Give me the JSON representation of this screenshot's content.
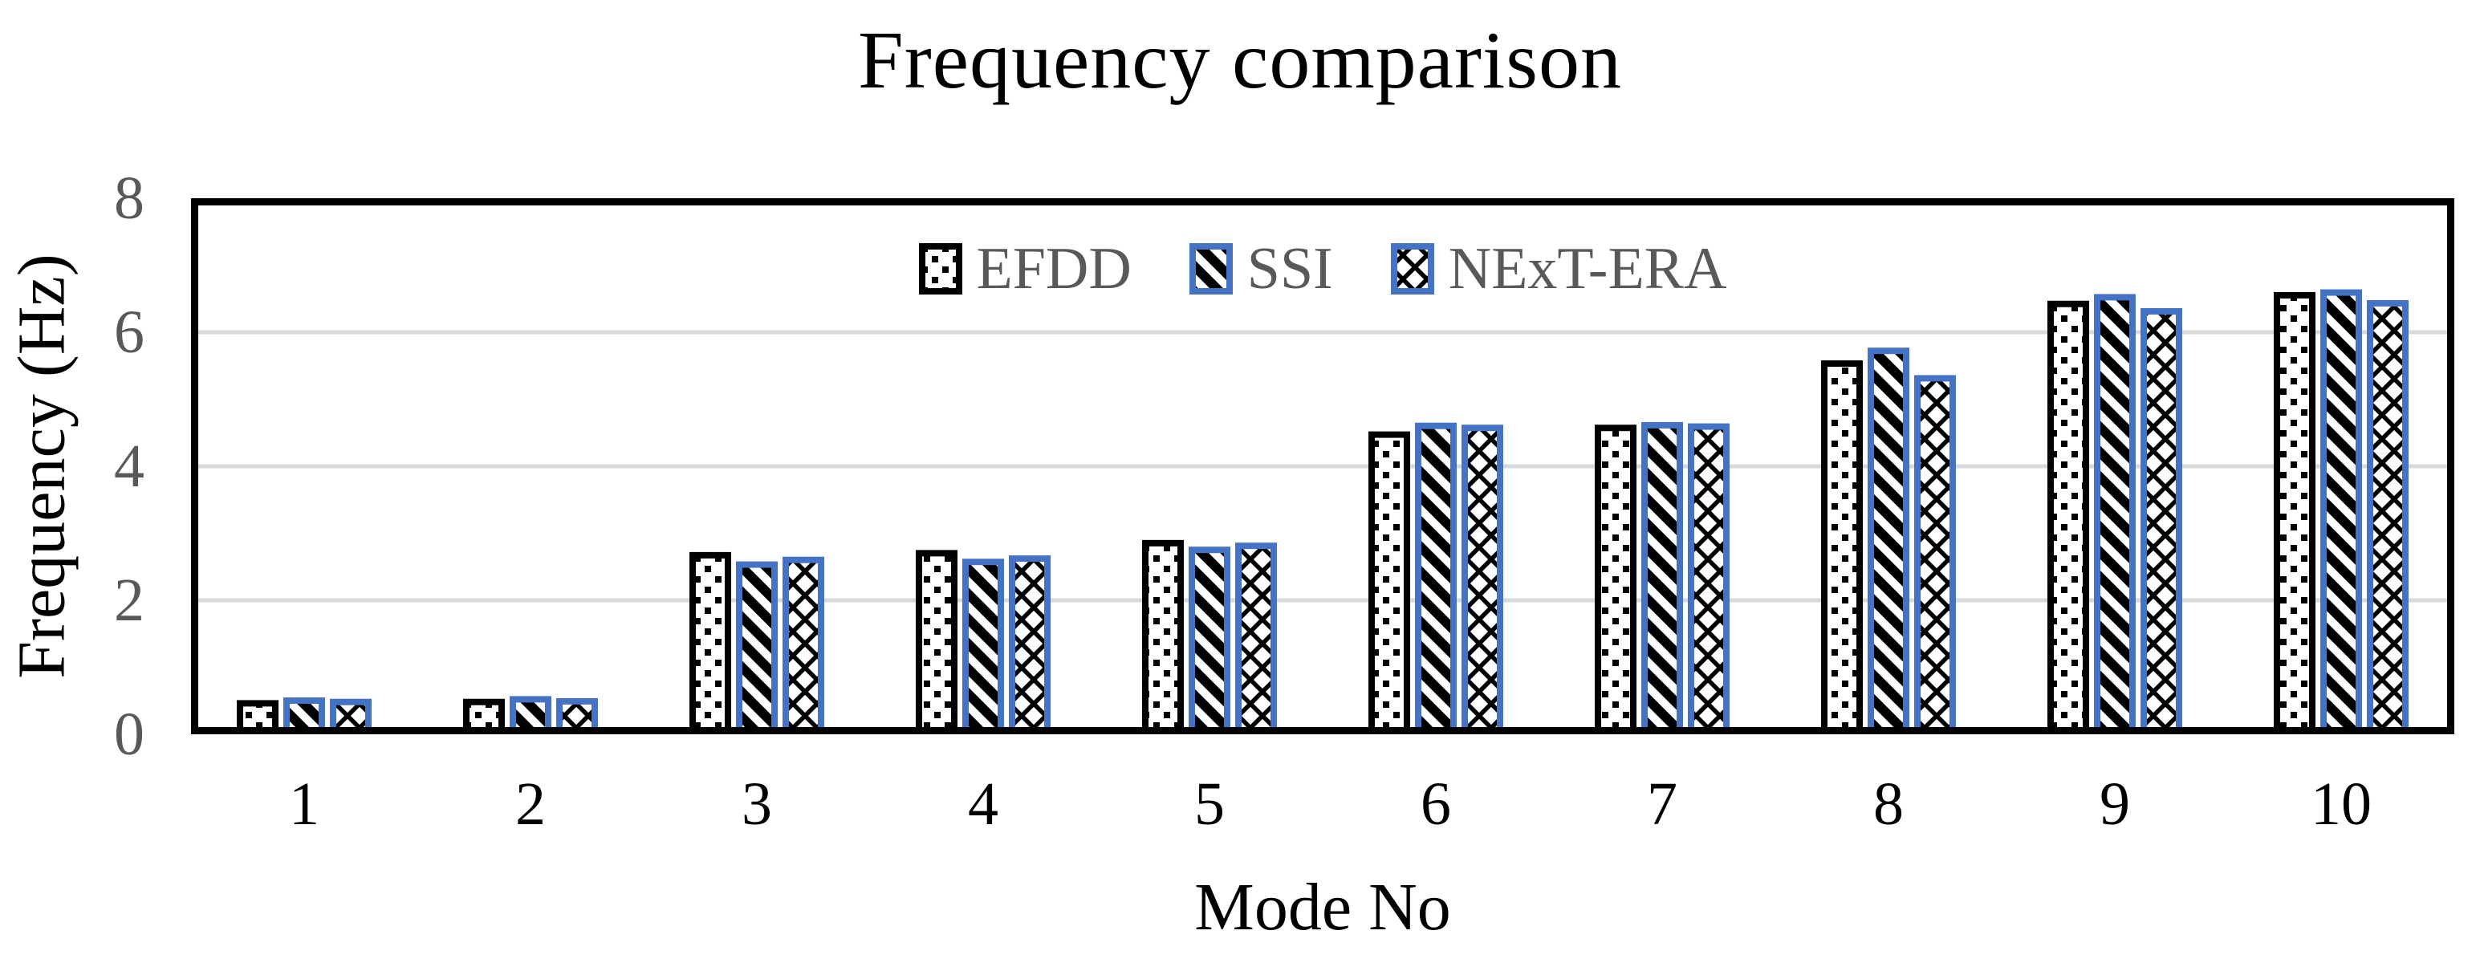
{
  "title": "Frequency comparison",
  "axes": {
    "x_label": "Mode No",
    "y_label": "Frequency (Hz)"
  },
  "colors": {
    "accent_blue": "#4472C4",
    "series_black": "#000000",
    "tick_gray": "#595959",
    "gridline_gray": "#D9D9D9",
    "background": "#FFFFFF"
  },
  "chart_data": {
    "type": "bar",
    "title": "Frequency comparison",
    "xlabel": "Mode No",
    "ylabel": "Frequency (Hz)",
    "ylim": [
      0,
      8
    ],
    "yticks": [
      0,
      2,
      4,
      6,
      8
    ],
    "grid": "horizontal-light-gray",
    "legend_position": "top-center-inside-plot",
    "plot_border": "black-box",
    "categories": [
      "1",
      "2",
      "3",
      "4",
      "5",
      "6",
      "7",
      "8",
      "9",
      "10"
    ],
    "series": [
      {
        "name": "EFDD",
        "pattern": "dots",
        "border_color": "#000000",
        "pattern_color": "#000000",
        "fill_background": "#FFFFFF",
        "values": [
          0.51,
          0.53,
          2.72,
          2.75,
          2.9,
          4.52,
          4.62,
          5.58,
          6.47,
          6.6
        ]
      },
      {
        "name": "SSI",
        "pattern": "diagonal-stripes",
        "border_color": "#4472C4",
        "pattern_color": "#000000",
        "fill_background": "#FFFFFF",
        "values": [
          0.55,
          0.57,
          2.58,
          2.62,
          2.8,
          4.65,
          4.66,
          5.77,
          6.57,
          6.64
        ]
      },
      {
        "name": "NExT-ERA",
        "pattern": "crosshatch",
        "border_color": "#4472C4",
        "pattern_color": "#000000",
        "fill_background": "#FFFFFF",
        "values": [
          0.53,
          0.54,
          2.65,
          2.67,
          2.86,
          4.62,
          4.64,
          5.36,
          6.36,
          6.48
        ]
      }
    ]
  }
}
